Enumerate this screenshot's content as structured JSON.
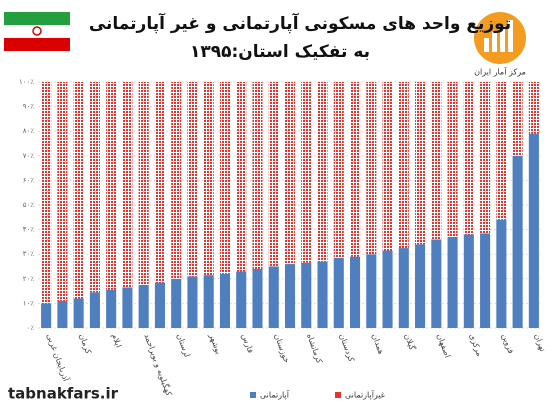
{
  "chart_data": {
    "type": "stacked_bar",
    "title": "توزیع واحد های مسکونی آپارتمانی و غیر آپارتمانی",
    "subtitle": "به تفکیک استان:۱۳۹۵",
    "logo_text": "مرکز آمار ایران",
    "watermark": "tabnakfars.ir",
    "categories": [
      "آذربایجان غربی",
      null,
      "کرمان",
      null,
      "ایلام",
      null,
      "کهگیلویه و بویراحمد",
      null,
      "لرستان",
      null,
      "بوشهر",
      null,
      "فارس",
      null,
      "خوزستان",
      null,
      "کرمانشاه",
      null,
      "کردستان",
      null,
      "همدان",
      null,
      "گیلان",
      null,
      "اصفهان",
      null,
      "مرکزی",
      null,
      "قزوین",
      null,
      "تهران"
    ],
    "series": [
      {
        "name": "آپارتمانی",
        "color": "#4f7fbf",
        "values": [
          10,
          11,
          12,
          14.5,
          15.5,
          16.5,
          17.5,
          18.5,
          20,
          21,
          21.5,
          22,
          23,
          24,
          25,
          26,
          26.5,
          27,
          28.5,
          29,
          30,
          31.5,
          32.5,
          34,
          36,
          37,
          38,
          38.5,
          44,
          70,
          79
        ]
      },
      {
        "name": "غیرآپارتمانی",
        "color": "#e5332f",
        "values": [
          90,
          89,
          88,
          85.5,
          84.5,
          83.5,
          82.5,
          81.5,
          80,
          79,
          78.5,
          78,
          77,
          76,
          75,
          74,
          73.5,
          73,
          71.5,
          71,
          70,
          68.5,
          67.5,
          66,
          64,
          63,
          62,
          61.5,
          56,
          30,
          21
        ]
      }
    ],
    "ylim": [
      0,
      100
    ],
    "yticks": [
      {
        "value": 0,
        "label": "۰٪"
      },
      {
        "value": 10,
        "label": "۱۰٪"
      },
      {
        "value": 20,
        "label": "۲۰٪"
      },
      {
        "value": 30,
        "label": "۳۰٪"
      },
      {
        "value": 40,
        "label": "۴۰٪"
      },
      {
        "value": 50,
        "label": "۵۰٪"
      },
      {
        "value": 60,
        "label": "۶۰٪"
      },
      {
        "value": 70,
        "label": "۷۰٪"
      },
      {
        "value": 80,
        "label": "۸۰٪"
      },
      {
        "value": 90,
        "label": "۹۰٪"
      },
      {
        "value": 100,
        "label": "۱۰۰٪"
      }
    ],
    "grid": true
  }
}
